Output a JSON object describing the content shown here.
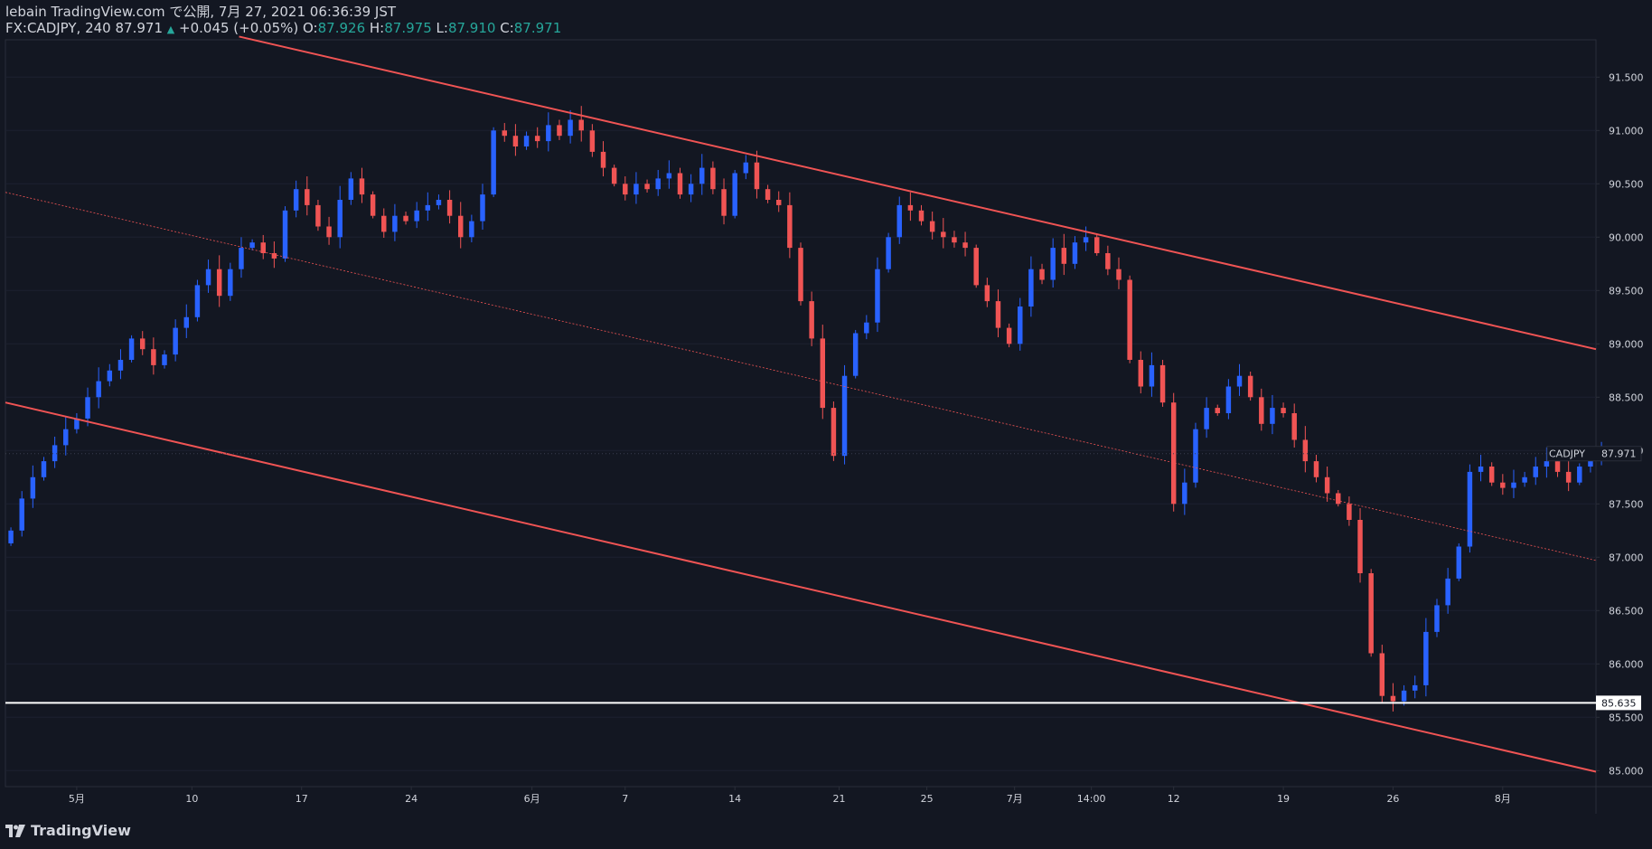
{
  "header": {
    "publish_line": "lebain TradingView.com で公開, 7月 27, 2021 06:36:39 JST",
    "symbol_interval": "FX:CADJPY, 240",
    "last_value": "87.971",
    "change": "+0.045 (+0.05%)",
    "open_label": "O:",
    "open": "87.926",
    "high_label": "H:",
    "high": "87.975",
    "low_label": "L:",
    "low": "87.910",
    "close_label": "C:",
    "close": "87.971"
  },
  "brand": {
    "name": "TradingView",
    "icon": "tradingview-logo-icon"
  },
  "colors": {
    "background": "#131722",
    "up": "#2962ff",
    "down": "#f05454",
    "channel": "#f05454",
    "support": "#ffffff",
    "text": "#d1d4dc",
    "value": "#26a69a"
  },
  "chart_data": {
    "type": "candlestick",
    "symbol": "CADJPY",
    "interval": "240",
    "y_ticks": [
      "91.500",
      "91.000",
      "90.500",
      "90.000",
      "89.500",
      "89.000",
      "88.500",
      "88.000",
      "87.500",
      "87.000",
      "86.500",
      "86.000",
      "85.500",
      "85.000"
    ],
    "ylim": [
      84.85,
      91.85
    ],
    "x_range": [
      0,
      145
    ],
    "x_ticks": [
      {
        "label": "5月",
        "x": 6.5
      },
      {
        "label": "10",
        "x": 17
      },
      {
        "label": "17",
        "x": 27
      },
      {
        "label": "24",
        "x": 37
      },
      {
        "label": "6月",
        "x": 48
      },
      {
        "label": "7",
        "x": 56.5
      },
      {
        "label": "14",
        "x": 66.5
      },
      {
        "label": "21",
        "x": 76
      },
      {
        "label": "25",
        "x": 84
      },
      {
        "label": "7月",
        "x": 92
      },
      {
        "label": "14:00",
        "x": 99
      },
      {
        "label": "12",
        "x": 106.5
      },
      {
        "label": "19",
        "x": 116.5
      },
      {
        "label": "26",
        "x": 126.5
      },
      {
        "label": "8月",
        "x": 136.5
      }
    ],
    "current_price": {
      "label": "CADJPY",
      "value": "87.971",
      "y": 87.971
    },
    "support_line": {
      "value": "85.635",
      "y": 85.635
    },
    "channel_upper": {
      "x1": 21.3,
      "y1": 91.88,
      "x2": 145,
      "y2": 88.95
    },
    "channel_lower": {
      "x1": 0,
      "y1": 88.45,
      "x2": 145,
      "y2": 84.99
    },
    "channel_mid": {
      "x1": 0,
      "y1": 90.42,
      "x2": 145,
      "y2": 86.97
    },
    "closes": [
      87.25,
      87.55,
      87.75,
      87.9,
      88.05,
      88.2,
      88.3,
      88.5,
      88.65,
      88.75,
      88.85,
      89.05,
      88.95,
      88.8,
      88.9,
      89.15,
      89.25,
      89.55,
      89.7,
      89.45,
      89.7,
      89.9,
      89.95,
      89.85,
      89.8,
      90.25,
      90.45,
      90.3,
      90.1,
      90.0,
      90.35,
      90.55,
      90.4,
      90.2,
      90.05,
      90.2,
      90.15,
      90.25,
      90.3,
      90.35,
      90.2,
      90.0,
      90.15,
      90.4,
      91.0,
      90.95,
      90.85,
      90.95,
      90.9,
      91.05,
      90.95,
      91.1,
      91.0,
      90.8,
      90.65,
      90.5,
      90.4,
      90.5,
      90.45,
      90.55,
      90.6,
      90.4,
      90.5,
      90.65,
      90.45,
      90.2,
      90.6,
      90.7,
      90.45,
      90.35,
      90.3,
      89.9,
      89.4,
      89.05,
      88.4,
      87.95,
      88.7,
      89.1,
      89.2,
      89.7,
      90.0,
      90.3,
      90.25,
      90.15,
      90.05,
      90.0,
      89.95,
      89.9,
      89.55,
      89.4,
      89.15,
      89.0,
      89.35,
      89.7,
      89.6,
      89.9,
      89.75,
      89.95,
      90.0,
      89.85,
      89.7,
      89.6,
      88.85,
      88.6,
      88.8,
      88.45,
      87.5,
      87.7,
      88.2,
      88.4,
      88.35,
      88.6,
      88.7,
      88.5,
      88.25,
      88.4,
      88.35,
      88.1,
      87.9,
      87.75,
      87.6,
      87.5,
      87.35,
      86.85,
      86.1,
      85.7,
      85.65,
      85.75,
      85.8,
      86.3,
      86.55,
      86.8,
      87.1,
      87.8,
      87.85,
      87.7,
      87.65,
      87.7,
      87.75,
      87.85,
      87.9,
      87.8,
      87.7,
      87.85,
      87.95,
      87.971
    ]
  }
}
